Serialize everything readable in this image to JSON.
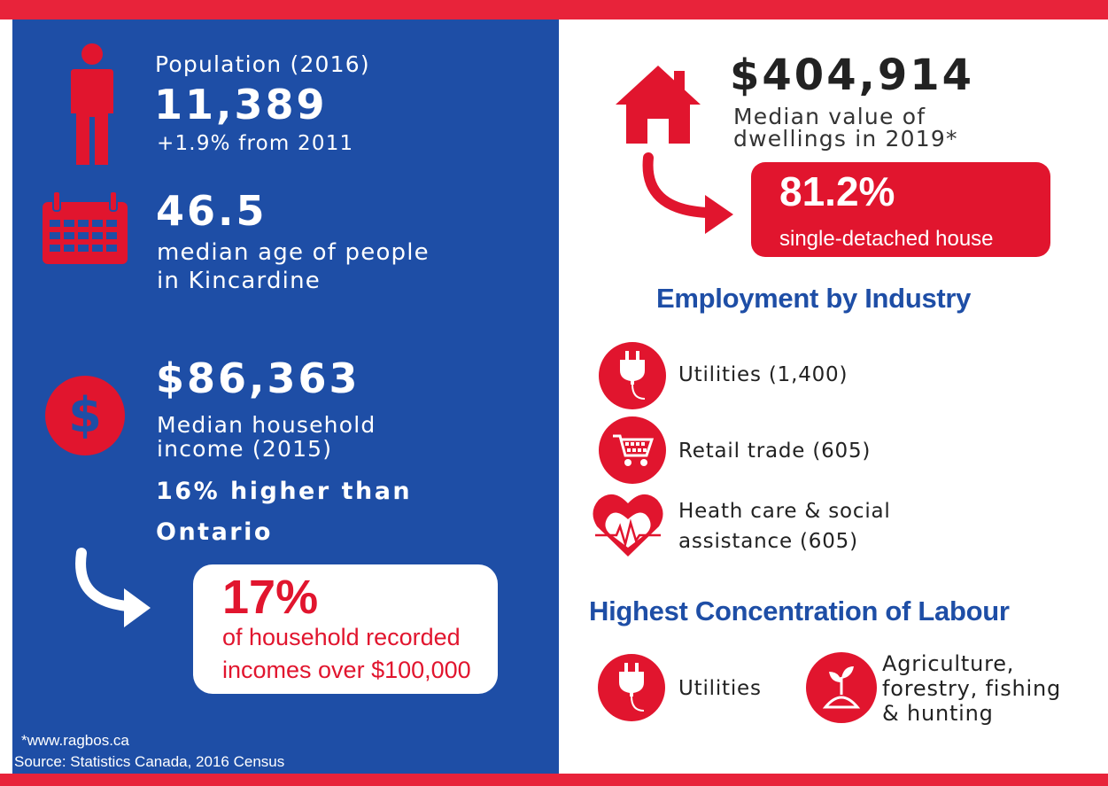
{
  "population": {
    "label": "Population (2016)",
    "value": "11,389",
    "change": "+1.9% from 2011"
  },
  "age": {
    "value": "46.5",
    "desc_line1": "median age of people",
    "desc_line2": "in Kincardine"
  },
  "income": {
    "value": "$86,363",
    "desc_line1": "Median household",
    "desc_line2": "income (2015)",
    "compare_line1": "16% higher than",
    "compare_line2": "Ontario",
    "high_pct": "17%",
    "high_line1": "of household recorded",
    "high_line2": "incomes over $100,000"
  },
  "footnote": {
    "line1": "*www.ragbos.ca",
    "line2": "Source: Statistics Canada, 2016 Census"
  },
  "dwelling": {
    "value": "$404,914",
    "desc_line1": "Median value of",
    "desc_line2": "dwellings in 2019*",
    "pct": "81.2%",
    "pct_label": "single-detached house"
  },
  "employment": {
    "heading": "Employment by Industry",
    "items": [
      {
        "label": "Utilities (1,400)",
        "icon": "plug-icon"
      },
      {
        "label": "Retail trade (605)",
        "icon": "shopping-cart-icon"
      },
      {
        "label_line1": "Heath care & social",
        "label_line2": "assistance (605)",
        "icon": "heart-pulse-icon"
      }
    ]
  },
  "labour": {
    "heading": "Highest Concentration of Labour",
    "items": [
      {
        "label": "Utilities",
        "icon": "plug-icon"
      },
      {
        "label_line1": "Agriculture,",
        "label_line2": "forestry, fishing",
        "label_line3": "& hunting",
        "icon": "sprout-icon"
      }
    ]
  },
  "colors": {
    "blue": "#1e4ea6",
    "red": "#e1152e",
    "white": "#ffffff"
  }
}
